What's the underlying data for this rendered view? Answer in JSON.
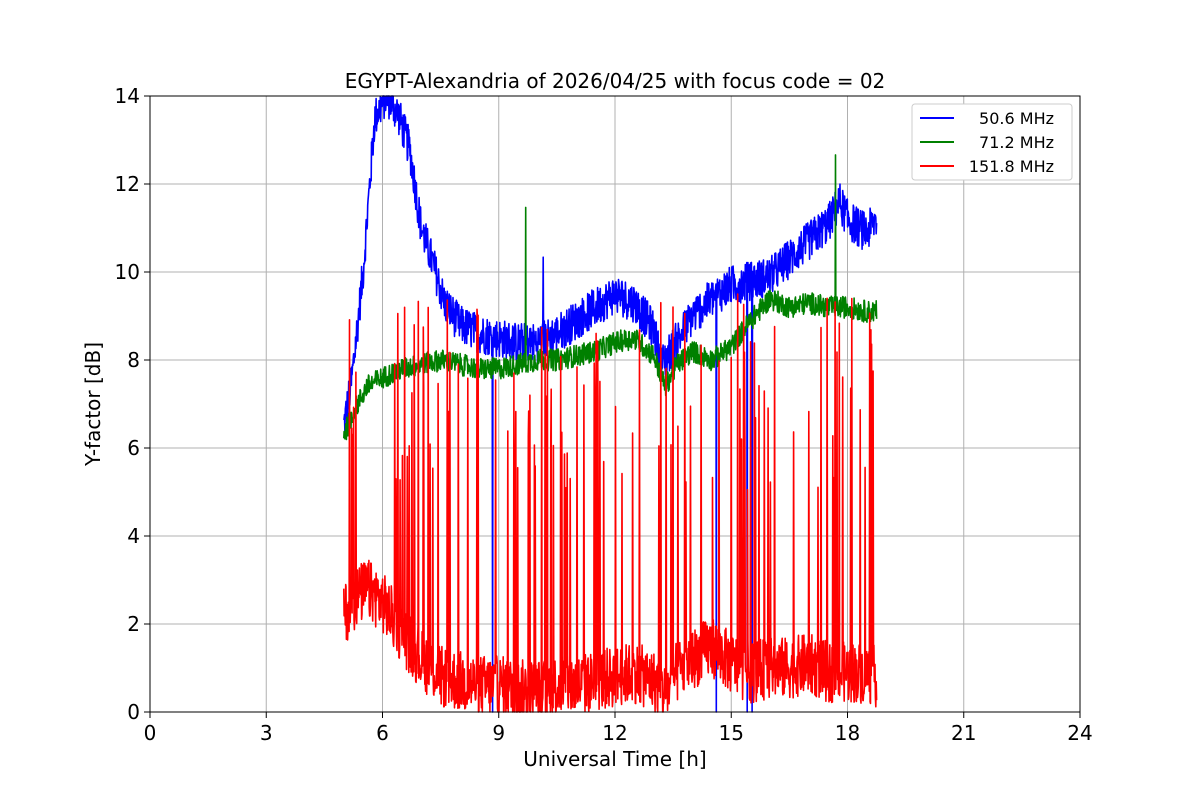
{
  "chart_data": {
    "type": "line",
    "title": "EGYPT-Alexandria of 2026/04/25 with focus code = 02",
    "xlabel": "Universal Time [h]",
    "ylabel": "Y-factor [dB]",
    "xlim": [
      0,
      24
    ],
    "ylim": [
      0,
      14
    ],
    "xticks": [
      0,
      3,
      6,
      9,
      12,
      15,
      18,
      21,
      24
    ],
    "yticks": [
      0,
      2,
      4,
      6,
      8,
      10,
      12,
      14
    ],
    "grid": true,
    "legend_position": "top-right",
    "series": [
      {
        "name": "50.6 MHz",
        "color": "#0000ff",
        "x": [
          5.0,
          5.2,
          5.5,
          5.8,
          6.1,
          6.4,
          6.7,
          7.0,
          7.3,
          7.6,
          8.0,
          8.5,
          9.0,
          9.5,
          10.0,
          10.5,
          11.0,
          11.5,
          12.0,
          12.5,
          13.0,
          13.2,
          13.5,
          14.0,
          14.5,
          15.0,
          15.5,
          16.0,
          16.5,
          17.0,
          17.5,
          17.8,
          18.0,
          18.3,
          18.5,
          18.75
        ],
        "y": [
          6.5,
          7.5,
          10.0,
          13.5,
          14.0,
          13.6,
          12.8,
          11.0,
          10.2,
          9.3,
          8.8,
          8.6,
          8.5,
          8.4,
          8.4,
          8.6,
          8.9,
          9.2,
          9.5,
          9.3,
          8.7,
          7.9,
          8.3,
          9.0,
          9.4,
          9.7,
          9.8,
          9.9,
          10.3,
          10.7,
          11.1,
          11.6,
          11.2,
          11.0,
          10.9,
          11.2
        ]
      },
      {
        "name": "71.2 MHz",
        "color": "#008000",
        "x": [
          5.0,
          5.3,
          5.6,
          6.0,
          6.5,
          7.0,
          7.5,
          8.0,
          8.5,
          9.0,
          9.5,
          10.0,
          10.5,
          11.0,
          11.5,
          12.0,
          12.5,
          13.0,
          13.3,
          13.6,
          14.0,
          14.5,
          15.0,
          15.5,
          16.0,
          16.5,
          17.0,
          17.5,
          18.0,
          18.5,
          18.75
        ],
        "y": [
          6.3,
          6.9,
          7.4,
          7.6,
          7.8,
          7.9,
          8.0,
          7.9,
          7.8,
          7.8,
          7.9,
          8.0,
          8.0,
          8.1,
          8.2,
          8.4,
          8.5,
          8.1,
          7.4,
          7.9,
          8.2,
          8.0,
          8.3,
          8.9,
          9.4,
          9.2,
          9.3,
          9.2,
          9.2,
          9.1,
          9.1
        ]
      },
      {
        "name": "151.8 MHz",
        "color": "#ff0000",
        "x": [
          5.0,
          5.3,
          5.6,
          6.0,
          6.5,
          7.0,
          7.5,
          8.0,
          8.5,
          9.0,
          9.5,
          10.0,
          10.5,
          11.0,
          11.5,
          12.0,
          12.5,
          13.0,
          13.3,
          13.6,
          14.0,
          14.5,
          15.0,
          15.5,
          16.0,
          16.5,
          17.0,
          17.5,
          18.0,
          18.5,
          18.75
        ],
        "y": [
          2.2,
          2.6,
          2.8,
          2.5,
          1.8,
          1.2,
          0.8,
          0.7,
          0.6,
          0.6,
          0.5,
          0.5,
          0.6,
          0.6,
          0.7,
          0.8,
          0.9,
          0.7,
          0.4,
          0.9,
          1.2,
          1.5,
          1.1,
          0.9,
          1.0,
          1.0,
          1.1,
          0.9,
          0.9,
          0.9,
          0.8
        ]
      }
    ]
  }
}
